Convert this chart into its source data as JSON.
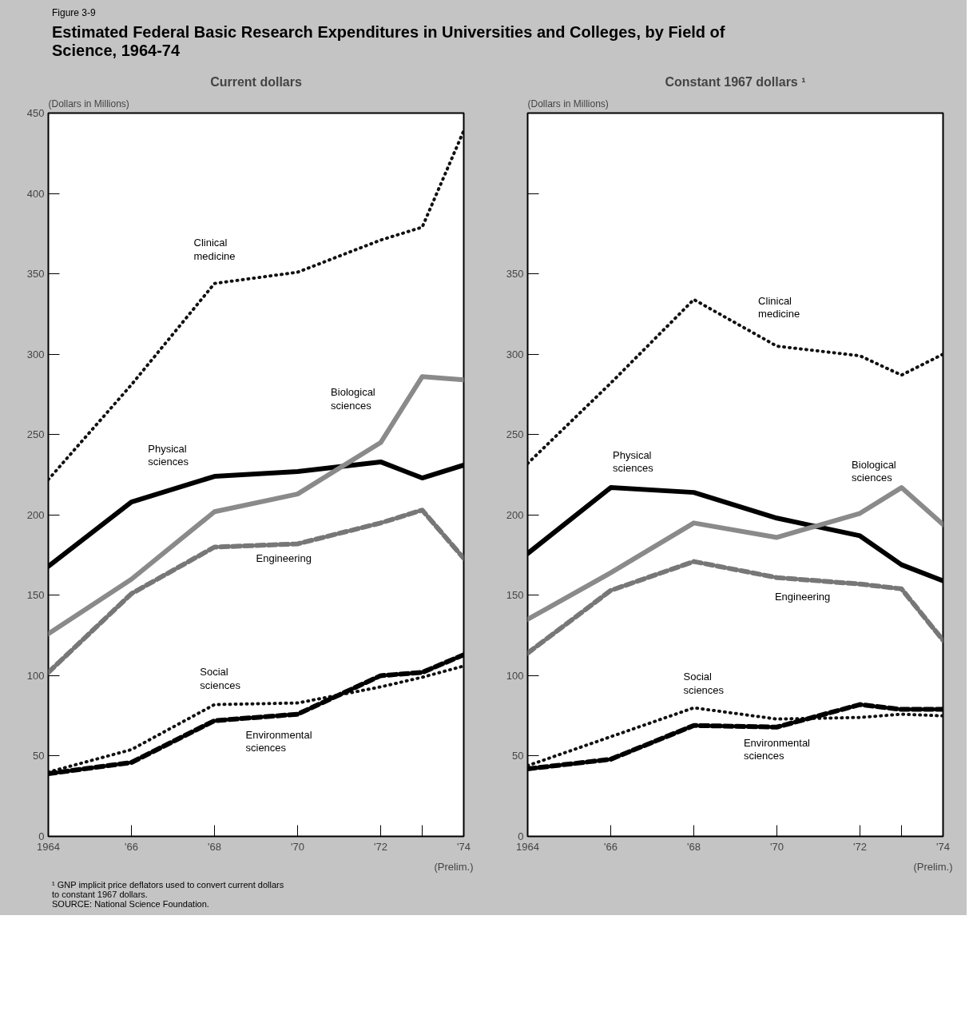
{
  "chart_data": [
    {
      "type": "line",
      "title": "Estimated Federal Basic Research Expenditures in Universities and Colleges, by Field of Science, 1964-74",
      "subtitle": "Current dollars",
      "ylabel": "(Dollars in Millions)",
      "annotations": [
        "Figure 3-9",
        "¹ GNP implicit price deflators used to convert current dollars to constant 1967 dollars.",
        "SOURCE: National Science Foundation.",
        "(Prelim.)"
      ],
      "x": [
        1964,
        1966,
        1968,
        1970,
        1972,
        1973,
        1974
      ],
      "xlim": [
        1964,
        1974
      ],
      "xticks": [
        1964,
        {
          "value": 1966,
          "label": "'66"
        },
        {
          "value": 1968,
          "label": "'68"
        },
        {
          "value": 1970,
          "label": "'70"
        },
        {
          "value": 1972,
          "label": "'72"
        },
        {
          "value": 1973,
          "label": null
        },
        {
          "value": 1974,
          "label": "'74"
        }
      ],
      "ylim": [
        0,
        450
      ],
      "yticks": [
        0,
        50,
        100,
        150,
        200,
        250,
        300,
        350,
        400,
        450
      ],
      "grid": false,
      "series": [
        {
          "name": "Clinical medicine",
          "color": "#111111",
          "line_style": "dotted",
          "values": [
            222,
            281,
            344,
            351,
            371,
            379,
            439
          ]
        },
        {
          "name": "Physical sciences",
          "color": "#000000",
          "line_style": "solid",
          "values": [
            168,
            208,
            224,
            227,
            233,
            223,
            231
          ]
        },
        {
          "name": "Biological sciences",
          "color": "#8a8a8a",
          "line_style": "solid",
          "values": [
            126,
            160,
            202,
            213,
            245,
            286,
            284
          ]
        },
        {
          "name": "Engineering",
          "color": "#777777",
          "line_style": "dashed",
          "values": [
            102,
            151,
            180,
            182,
            195,
            203,
            173
          ]
        },
        {
          "name": "Social sciences",
          "color": "#111111",
          "line_style": "dotted",
          "values": [
            40,
            54,
            82,
            83,
            93,
            99,
            106
          ]
        },
        {
          "name": "Environmental sciences",
          "color": "#000000",
          "line_style": "dashed",
          "values": [
            39,
            46,
            72,
            76,
            100,
            102,
            113
          ]
        }
      ]
    },
    {
      "type": "line",
      "subtitle": "Constant 1967 dollars ¹",
      "ylabel": "(Dollars in Millions)",
      "annotations": [
        "(Prelim.)"
      ],
      "x": [
        1964,
        1966,
        1968,
        1970,
        1972,
        1973,
        1974
      ],
      "xlim": [
        1964,
        1974
      ],
      "xticks": [
        1964,
        {
          "value": 1966,
          "label": "'66"
        },
        {
          "value": 1968,
          "label": "'68"
        },
        {
          "value": 1970,
          "label": "'70"
        },
        {
          "value": 1972,
          "label": "'72"
        },
        {
          "value": 1973,
          "label": null
        },
        {
          "value": 1974,
          "label": "'74"
        }
      ],
      "ylim": [
        0,
        450
      ],
      "yticks": [
        0,
        50,
        100,
        150,
        200,
        250,
        300,
        350,
        {
          "value": 400,
          "label": null
        },
        {
          "value": 450,
          "label": null
        }
      ],
      "grid": false,
      "series": [
        {
          "name": "Clinical medicine",
          "color": "#111111",
          "line_style": "dotted",
          "values": [
            232,
            282,
            334,
            305,
            299,
            287,
            300
          ]
        },
        {
          "name": "Physical sciences",
          "color": "#000000",
          "line_style": "solid",
          "values": [
            176,
            217,
            214,
            198,
            187,
            169,
            159
          ]
        },
        {
          "name": "Biological sciences",
          "color": "#8a8a8a",
          "line_style": "solid",
          "values": [
            135,
            164,
            195,
            186,
            201,
            217,
            194
          ]
        },
        {
          "name": "Engineering",
          "color": "#777777",
          "line_style": "dashed",
          "values": [
            114,
            153,
            171,
            161,
            157,
            154,
            122
          ]
        },
        {
          "name": "Social sciences",
          "color": "#111111",
          "line_style": "dotted",
          "values": [
            44,
            62,
            80,
            73,
            74,
            76,
            75
          ]
        },
        {
          "name": "Environmental sciences",
          "color": "#000000",
          "line_style": "dashed",
          "values": [
            42,
            48,
            69,
            68,
            82,
            79,
            79
          ]
        }
      ]
    }
  ]
}
